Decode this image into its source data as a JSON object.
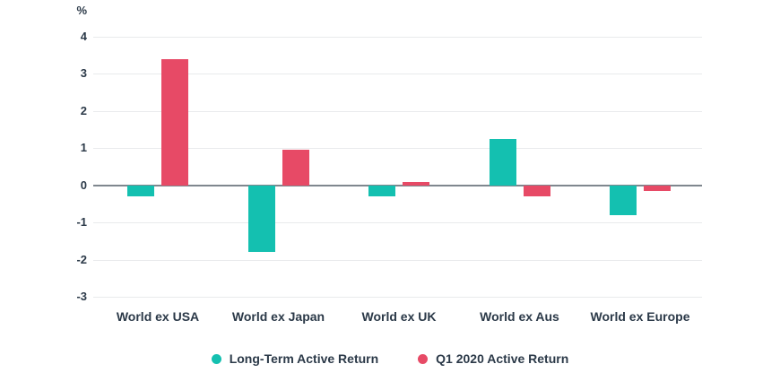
{
  "chart_data": {
    "type": "bar",
    "title": "",
    "xlabel": "",
    "ylabel": "%",
    "categories": [
      "World ex USA",
      "World ex Japan",
      "World ex UK",
      "World ex Aus",
      "World ex Europe"
    ],
    "series": [
      {
        "name": "Long-Term Active Return",
        "color": "#14c0b0",
        "values": [
          -0.3,
          -1.8,
          -0.3,
          1.25,
          -0.8
        ]
      },
      {
        "name": "Q1 2020 Active Return",
        "color": "#e74a66",
        "values": [
          3.4,
          0.95,
          0.1,
          -0.3,
          -0.15
        ]
      }
    ],
    "ylim": [
      -3,
      4
    ],
    "yticks": [
      4,
      3,
      2,
      1,
      0,
      -1,
      -2,
      -3
    ],
    "grid": true,
    "legend_position": "bottom"
  },
  "colors": {
    "background": "#ffffff",
    "text": "#2b3948",
    "gridline": "#e9eaec",
    "zero_line": "#7f878e"
  }
}
